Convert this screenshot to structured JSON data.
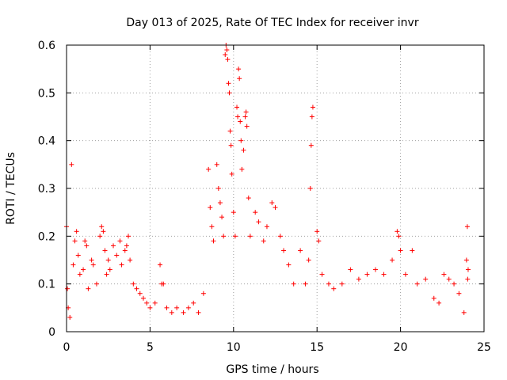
{
  "chart_data": {
    "type": "scatter",
    "title": "Day 013 of 2025, Rate Of TEC Index for receiver invr",
    "xlabel": "GPS time / hours",
    "ylabel": "ROTI / TECUs",
    "xlim": [
      0,
      25
    ],
    "ylim": [
      0,
      0.6
    ],
    "xticks": [
      0,
      5,
      10,
      15,
      20,
      25
    ],
    "xtick_labels": [
      "0",
      "5",
      "10",
      "15",
      "20",
      "25"
    ],
    "yticks": [
      0,
      0.1,
      0.2,
      0.3,
      0.4,
      0.5,
      0.6
    ],
    "ytick_labels": [
      "0",
      "0.1",
      "0.2",
      "0.3",
      "0.4",
      "0.5",
      "0.6"
    ],
    "grid": true,
    "marker": "+",
    "marker_color": "#ff0000",
    "series": [
      {
        "name": "ROTI",
        "points": [
          [
            0.0,
            0.22
          ],
          [
            0.05,
            0.09
          ],
          [
            0.1,
            0.05
          ],
          [
            0.2,
            0.03
          ],
          [
            0.3,
            0.35
          ],
          [
            0.4,
            0.14
          ],
          [
            0.5,
            0.19
          ],
          [
            0.6,
            0.21
          ],
          [
            0.7,
            0.16
          ],
          [
            0.8,
            0.12
          ],
          [
            1.0,
            0.13
          ],
          [
            1.1,
            0.19
          ],
          [
            1.2,
            0.18
          ],
          [
            1.3,
            0.09
          ],
          [
            1.5,
            0.15
          ],
          [
            1.6,
            0.14
          ],
          [
            1.8,
            0.1
          ],
          [
            2.0,
            0.2
          ],
          [
            2.1,
            0.22
          ],
          [
            2.2,
            0.21
          ],
          [
            2.3,
            0.17
          ],
          [
            2.4,
            0.12
          ],
          [
            2.5,
            0.15
          ],
          [
            2.6,
            0.13
          ],
          [
            2.8,
            0.18
          ],
          [
            3.0,
            0.16
          ],
          [
            3.2,
            0.19
          ],
          [
            3.3,
            0.14
          ],
          [
            3.5,
            0.17
          ],
          [
            3.6,
            0.18
          ],
          [
            3.7,
            0.2
          ],
          [
            3.8,
            0.15
          ],
          [
            4.0,
            0.1
          ],
          [
            4.2,
            0.09
          ],
          [
            4.4,
            0.08
          ],
          [
            4.6,
            0.07
          ],
          [
            4.8,
            0.06
          ],
          [
            5.0,
            0.05
          ],
          [
            5.3,
            0.06
          ],
          [
            5.6,
            0.14
          ],
          [
            5.7,
            0.1
          ],
          [
            5.8,
            0.1
          ],
          [
            6.0,
            0.05
          ],
          [
            6.3,
            0.04
          ],
          [
            6.6,
            0.05
          ],
          [
            7.0,
            0.04
          ],
          [
            7.3,
            0.05
          ],
          [
            7.6,
            0.06
          ],
          [
            7.9,
            0.04
          ],
          [
            8.2,
            0.08
          ],
          [
            8.5,
            0.34
          ],
          [
            8.6,
            0.26
          ],
          [
            8.7,
            0.22
          ],
          [
            8.8,
            0.19
          ],
          [
            9.0,
            0.35
          ],
          [
            9.1,
            0.3
          ],
          [
            9.2,
            0.27
          ],
          [
            9.3,
            0.24
          ],
          [
            9.4,
            0.2
          ],
          [
            9.5,
            0.58
          ],
          [
            9.55,
            0.6
          ],
          [
            9.6,
            0.59
          ],
          [
            9.65,
            0.57
          ],
          [
            9.7,
            0.52
          ],
          [
            9.75,
            0.5
          ],
          [
            9.8,
            0.42
          ],
          [
            9.85,
            0.39
          ],
          [
            9.9,
            0.33
          ],
          [
            10.0,
            0.25
          ],
          [
            10.1,
            0.2
          ],
          [
            10.2,
            0.47
          ],
          [
            10.25,
            0.45
          ],
          [
            10.3,
            0.55
          ],
          [
            10.35,
            0.53
          ],
          [
            10.4,
            0.44
          ],
          [
            10.45,
            0.4
          ],
          [
            10.5,
            0.34
          ],
          [
            10.6,
            0.38
          ],
          [
            10.7,
            0.45
          ],
          [
            10.75,
            0.46
          ],
          [
            10.8,
            0.43
          ],
          [
            10.9,
            0.28
          ],
          [
            11.0,
            0.2
          ],
          [
            11.3,
            0.25
          ],
          [
            11.5,
            0.23
          ],
          [
            11.8,
            0.19
          ],
          [
            12.0,
            0.22
          ],
          [
            12.3,
            0.27
          ],
          [
            12.5,
            0.26
          ],
          [
            12.8,
            0.2
          ],
          [
            13.0,
            0.17
          ],
          [
            13.3,
            0.14
          ],
          [
            13.6,
            0.1
          ],
          [
            14.0,
            0.17
          ],
          [
            14.3,
            0.1
          ],
          [
            14.5,
            0.15
          ],
          [
            14.6,
            0.3
          ],
          [
            14.65,
            0.39
          ],
          [
            14.7,
            0.45
          ],
          [
            14.75,
            0.47
          ],
          [
            15.0,
            0.21
          ],
          [
            15.1,
            0.19
          ],
          [
            15.3,
            0.12
          ],
          [
            15.7,
            0.1
          ],
          [
            16.0,
            0.09
          ],
          [
            16.5,
            0.1
          ],
          [
            17.0,
            0.13
          ],
          [
            17.5,
            0.11
          ],
          [
            18.0,
            0.12
          ],
          [
            18.5,
            0.13
          ],
          [
            19.0,
            0.12
          ],
          [
            19.5,
            0.15
          ],
          [
            19.8,
            0.21
          ],
          [
            19.9,
            0.2
          ],
          [
            20.0,
            0.17
          ],
          [
            20.3,
            0.12
          ],
          [
            20.7,
            0.17
          ],
          [
            21.0,
            0.1
          ],
          [
            21.5,
            0.11
          ],
          [
            22.0,
            0.07
          ],
          [
            22.3,
            0.06
          ],
          [
            22.6,
            0.12
          ],
          [
            22.9,
            0.11
          ],
          [
            23.2,
            0.1
          ],
          [
            23.5,
            0.08
          ],
          [
            23.8,
            0.04
          ],
          [
            23.95,
            0.15
          ],
          [
            24.0,
            0.22
          ],
          [
            24.02,
            0.11
          ],
          [
            24.05,
            0.13
          ]
        ]
      }
    ]
  }
}
